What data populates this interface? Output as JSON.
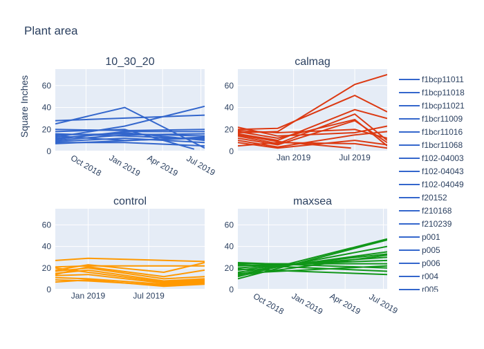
{
  "chart_data": {
    "title": "Plant area",
    "type": "line",
    "ylabel": "Square Inches",
    "legend_entries": [
      "f1bcp11011",
      "f1bcp11018",
      "f1bcp11021",
      "f1bcr11009",
      "f1bcr11016",
      "f1bcr11068",
      "f102-04003",
      "f102-04043",
      "f102-04049",
      "f20152",
      "f210168",
      "f210239",
      "p001",
      "p005",
      "p006",
      "r004",
      "r005"
    ],
    "legend_color": "#3366cc",
    "panels": [
      {
        "title": "10_30_20",
        "color": "#3366cc",
        "ylim": [
          0,
          75
        ],
        "yticks": [
          0,
          20,
          40,
          60
        ],
        "x_range": [
          "2018-07-20",
          "2019-07-10"
        ],
        "xticks": [
          {
            "date": "2018-10-01",
            "label": "Oct 2018"
          },
          {
            "date": "2019-01-01",
            "label": "Jan 2019"
          },
          {
            "date": "2019-04-01",
            "label": "Apr 2019"
          },
          {
            "date": "2019-07-01",
            "label": "Jul 2019"
          }
        ],
        "series": [
          {
            "x": [
              "2018-07-20",
              "2019-01-01",
              "2019-07-10"
            ],
            "y": [
              25,
              40,
              3
            ]
          },
          {
            "x": [
              "2018-07-20",
              "2019-07-10"
            ],
            "y": [
              28,
              33
            ]
          },
          {
            "x": [
              "2018-07-20",
              "2019-01-01",
              "2019-07-10"
            ],
            "y": [
              13,
              23,
              41
            ]
          },
          {
            "x": [
              "2018-07-20",
              "2019-01-01",
              "2019-07-10"
            ],
            "y": [
              20,
              19,
              20
            ]
          },
          {
            "x": [
              "2018-07-20",
              "2019-01-01",
              "2019-06-15"
            ],
            "y": [
              18,
              20,
              2
            ]
          },
          {
            "x": [
              "2018-07-20",
              "2019-01-01",
              "2019-07-10"
            ],
            "y": [
              15,
              16,
              14
            ]
          },
          {
            "x": [
              "2018-07-20",
              "2019-01-01",
              "2019-07-10"
            ],
            "y": [
              12,
              17,
              10
            ]
          },
          {
            "x": [
              "2018-07-20",
              "2019-01-01",
              "2019-07-10"
            ],
            "y": [
              10,
              15,
              16
            ]
          },
          {
            "x": [
              "2018-07-20",
              "2019-01-01",
              "2019-07-10"
            ],
            "y": [
              9,
              12,
              8
            ]
          },
          {
            "x": [
              "2018-07-20",
              "2019-01-01",
              "2019-07-10"
            ],
            "y": [
              14,
              10,
              12
            ]
          },
          {
            "x": [
              "2018-07-20",
              "2019-01-01",
              "2019-07-10"
            ],
            "y": [
              8,
              8,
              5
            ]
          },
          {
            "x": [
              "2018-07-20",
              "2019-01-01",
              "2019-07-10"
            ],
            "y": [
              16,
              14,
              11
            ]
          },
          {
            "x": [
              "2018-07-20",
              "2019-01-01",
              "2019-07-10"
            ],
            "y": [
              11,
              18,
              18
            ]
          },
          {
            "x": [
              "2018-07-20",
              "2019-07-10"
            ],
            "y": [
              7,
              13
            ]
          }
        ]
      },
      {
        "title": "calmag",
        "color": "#dc3912",
        "ylim": [
          0,
          75
        ],
        "yticks": [
          0,
          20,
          40,
          60
        ],
        "x_range": [
          "2018-07-20",
          "2019-10-05"
        ],
        "xticks": [
          {
            "date": "2019-01-01",
            "label": "Jan 2019"
          },
          {
            "date": "2019-07-01",
            "label": "Jul 2019"
          }
        ],
        "series": [
          {
            "x": [
              "2018-07-20",
              "2018-11-15",
              "2019-07-01",
              "2019-10-05"
            ],
            "y": [
              17,
              18,
              61,
              70
            ]
          },
          {
            "x": [
              "2018-07-20",
              "2018-11-15",
              "2019-07-01",
              "2019-10-05"
            ],
            "y": [
              20,
              21,
              51,
              36
            ]
          },
          {
            "x": [
              "2018-07-20",
              "2018-11-15",
              "2019-07-01",
              "2019-10-05"
            ],
            "y": [
              16,
              10,
              38,
              30
            ]
          },
          {
            "x": [
              "2018-07-20",
              "2018-11-15",
              "2019-07-01",
              "2019-10-05"
            ],
            "y": [
              14,
              7,
              34,
              10
            ]
          },
          {
            "x": [
              "2018-07-20",
              "2018-11-15",
              "2019-07-01",
              "2019-10-05"
            ],
            "y": [
              12,
              6,
              28,
              8
            ]
          },
          {
            "x": [
              "2018-07-20",
              "2018-11-15",
              "2019-07-01",
              "2019-10-05"
            ],
            "y": [
              18,
              12,
              29,
              5
            ]
          },
          {
            "x": [
              "2018-07-20",
              "2018-11-15",
              "2019-07-01",
              "2019-10-05"
            ],
            "y": [
              22,
              14,
              17,
              23
            ]
          },
          {
            "x": [
              "2018-07-20",
              "2018-11-15",
              "2019-07-01",
              "2019-10-05"
            ],
            "y": [
              10,
              4,
              15,
              18
            ]
          },
          {
            "x": [
              "2018-07-20",
              "2018-11-15",
              "2019-07-01",
              "2019-10-05"
            ],
            "y": [
              8,
              3,
              10,
              6
            ]
          },
          {
            "x": [
              "2018-07-20",
              "2018-11-15",
              "2019-07-01",
              "2019-10-05"
            ],
            "y": [
              5,
              8,
              7,
              3
            ]
          },
          {
            "x": [
              "2018-07-20",
              "2018-11-15",
              "2019-06-20"
            ],
            "y": [
              15,
              9,
              3
            ]
          },
          {
            "x": [
              "2018-07-20",
              "2018-11-15",
              "2019-07-01",
              "2019-10-05"
            ],
            "y": [
              19,
              17,
              20,
              12
            ]
          }
        ]
      },
      {
        "title": "control",
        "color": "#ff9900",
        "ylim": [
          0,
          75
        ],
        "yticks": [
          0,
          20,
          40,
          60
        ],
        "x_range": [
          "2018-09-25",
          "2019-12-15"
        ],
        "xticks": [
          {
            "date": "2019-01-01",
            "label": "Jan 2019"
          },
          {
            "date": "2019-07-01",
            "label": "Jul 2019"
          }
        ],
        "series": [
          {
            "x": [
              "2018-09-25",
              "2019-01-01",
              "2019-12-15"
            ],
            "y": [
              27,
              29,
              26
            ]
          },
          {
            "x": [
              "2018-09-25",
              "2019-01-01",
              "2019-12-15"
            ],
            "y": [
              21,
              22,
              22
            ]
          },
          {
            "x": [
              "2018-09-25",
              "2019-01-01",
              "2019-08-15",
              "2019-12-15"
            ],
            "y": [
              18,
              23,
              16,
              25
            ]
          },
          {
            "x": [
              "2018-09-25",
              "2019-01-01",
              "2019-08-15",
              "2019-12-15"
            ],
            "y": [
              15,
              18,
              8,
              10
            ]
          },
          {
            "x": [
              "2018-09-25",
              "2019-01-01",
              "2019-08-15",
              "2019-12-15"
            ],
            "y": [
              13,
              14,
              6,
              8
            ]
          },
          {
            "x": [
              "2018-09-25",
              "2019-01-01",
              "2019-08-15",
              "2019-12-15"
            ],
            "y": [
              11,
              10,
              5,
              7
            ]
          },
          {
            "x": [
              "2018-09-25",
              "2019-01-01",
              "2019-08-15",
              "2019-12-15"
            ],
            "y": [
              9,
              8,
              4,
              6
            ]
          },
          {
            "x": [
              "2018-09-25",
              "2019-01-01",
              "2019-08-15",
              "2019-12-15"
            ],
            "y": [
              7,
              9,
              3,
              5
            ]
          },
          {
            "x": [
              "2018-09-25",
              "2019-01-01",
              "2019-08-15",
              "2019-12-15"
            ],
            "y": [
              17,
              20,
              10,
              12
            ]
          },
          {
            "x": [
              "2018-09-25",
              "2019-01-01",
              "2019-08-15",
              "2019-12-15"
            ],
            "y": [
              14,
              21,
              12,
              18
            ]
          },
          {
            "x": [
              "2018-09-25",
              "2019-01-01",
              "2019-08-15",
              "2019-12-15"
            ],
            "y": [
              20,
              16,
              7,
              9
            ]
          }
        ]
      },
      {
        "title": "maxsea",
        "color": "#109618",
        "ylim": [
          0,
          75
        ],
        "yticks": [
          0,
          20,
          40,
          60
        ],
        "x_range": [
          "2018-07-20",
          "2019-07-10"
        ],
        "xticks": [
          {
            "date": "2018-10-01",
            "label": "Oct 2018"
          },
          {
            "date": "2019-01-01",
            "label": "Jan 2019"
          },
          {
            "date": "2019-04-01",
            "label": "Apr 2019"
          },
          {
            "date": "2019-07-01",
            "label": "Jul 2019"
          }
        ],
        "series": [
          {
            "x": [
              "2018-07-20",
              "2019-07-10"
            ],
            "y": [
              12,
              47
            ]
          },
          {
            "x": [
              "2018-07-20",
              "2019-07-10"
            ],
            "y": [
              10,
              46
            ]
          },
          {
            "x": [
              "2018-07-20",
              "2019-07-10"
            ],
            "y": [
              14,
              40
            ]
          },
          {
            "x": [
              "2018-07-20",
              "2019-07-10"
            ],
            "y": [
              16,
              35
            ]
          },
          {
            "x": [
              "2018-07-20",
              "2019-07-10"
            ],
            "y": [
              18,
              33
            ]
          },
          {
            "x": [
              "2018-07-20",
              "2019-07-10"
            ],
            "y": [
              20,
              30
            ]
          },
          {
            "x": [
              "2018-07-20",
              "2019-07-10"
            ],
            "y": [
              22,
              27
            ]
          },
          {
            "x": [
              "2018-07-20",
              "2019-07-10"
            ],
            "y": [
              24,
              24
            ]
          },
          {
            "x": [
              "2018-07-20",
              "2019-07-10"
            ],
            "y": [
              25,
              20
            ]
          },
          {
            "x": [
              "2018-07-20",
              "2019-07-10"
            ],
            "y": [
              23,
              17
            ]
          },
          {
            "x": [
              "2018-07-20",
              "2019-07-10"
            ],
            "y": [
              19,
              14
            ]
          },
          {
            "x": [
              "2018-07-20",
              "2019-07-10"
            ],
            "y": [
              15,
              22
            ]
          },
          {
            "x": [
              "2018-07-20",
              "2019-07-10"
            ],
            "y": [
              13,
              32
            ]
          }
        ]
      }
    ]
  }
}
